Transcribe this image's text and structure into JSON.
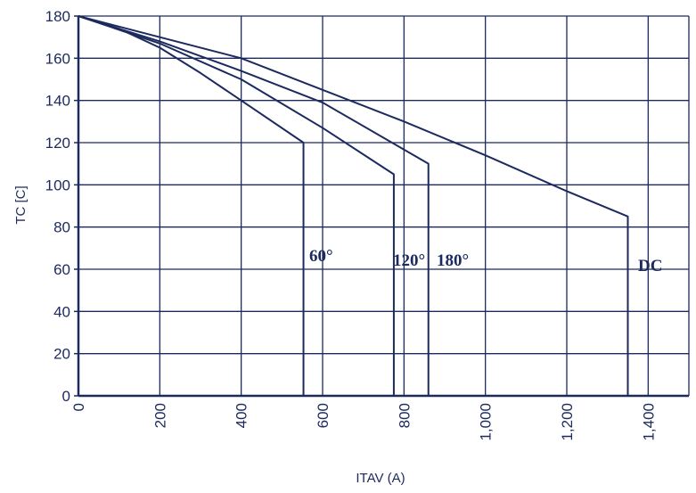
{
  "chart_data": {
    "type": "line",
    "xlabel": "ITAV (A)",
    "ylabel": "TC [C]",
    "xlim": [
      0,
      1500
    ],
    "ylim": [
      0,
      180
    ],
    "x_ticks": [
      0,
      200,
      400,
      600,
      800,
      1000,
      1200,
      1400
    ],
    "x_tick_labels": [
      "0",
      "200",
      "400",
      "600",
      "800",
      "1,000",
      "1,200",
      "1,400"
    ],
    "y_ticks": [
      0,
      20,
      40,
      60,
      80,
      100,
      120,
      140,
      160,
      180
    ],
    "y_tick_labels": [
      "0",
      "20",
      "40",
      "60",
      "80",
      "100",
      "120",
      "140",
      "160",
      "180"
    ],
    "grid": true,
    "line_color": "#1c2a5e",
    "grid_color": "#1c2a5e",
    "series": [
      {
        "name": "60°",
        "x": [
          0,
          100,
          200,
          300,
          400,
          553,
          553
        ],
        "y": [
          180,
          174,
          165,
          153,
          140,
          120,
          0
        ]
      },
      {
        "name": "120°",
        "x": [
          0,
          200,
          400,
          600,
          775,
          775
        ],
        "y": [
          180,
          167,
          150,
          127,
          105,
          0
        ]
      },
      {
        "name": "180°",
        "x": [
          0,
          200,
          400,
          600,
          860,
          860
        ],
        "y": [
          180,
          168,
          154,
          139,
          110,
          0
        ]
      },
      {
        "name": "DC",
        "x": [
          0,
          200,
          400,
          600,
          800,
          1000,
          1200,
          1350,
          1350
        ],
        "y": [
          180,
          170,
          160,
          145,
          130,
          114,
          97,
          85,
          0
        ]
      }
    ]
  }
}
